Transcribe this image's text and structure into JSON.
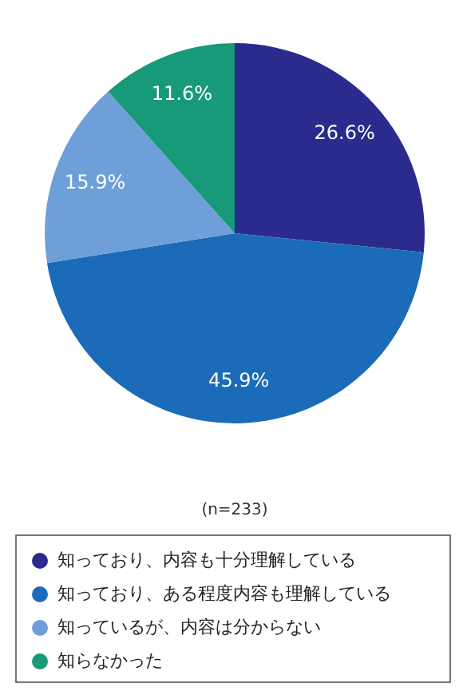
{
  "chart_data": {
    "type": "pie",
    "categories": [
      "知っており、内容も十分理解している",
      "知っており、ある程度内容も理解している",
      "知っているが、内容は分からない",
      "知らなかった"
    ],
    "values": [
      26.6,
      45.9,
      15.9,
      11.6
    ],
    "colors": [
      "#2a2b8c",
      "#1b6bb8",
      "#6f9fd9",
      "#17997a"
    ],
    "value_labels": [
      "26.6%",
      "45.9%",
      "15.9%",
      "11.6%"
    ],
    "annotations": [
      "(n=233)"
    ],
    "legend": "bottom"
  }
}
